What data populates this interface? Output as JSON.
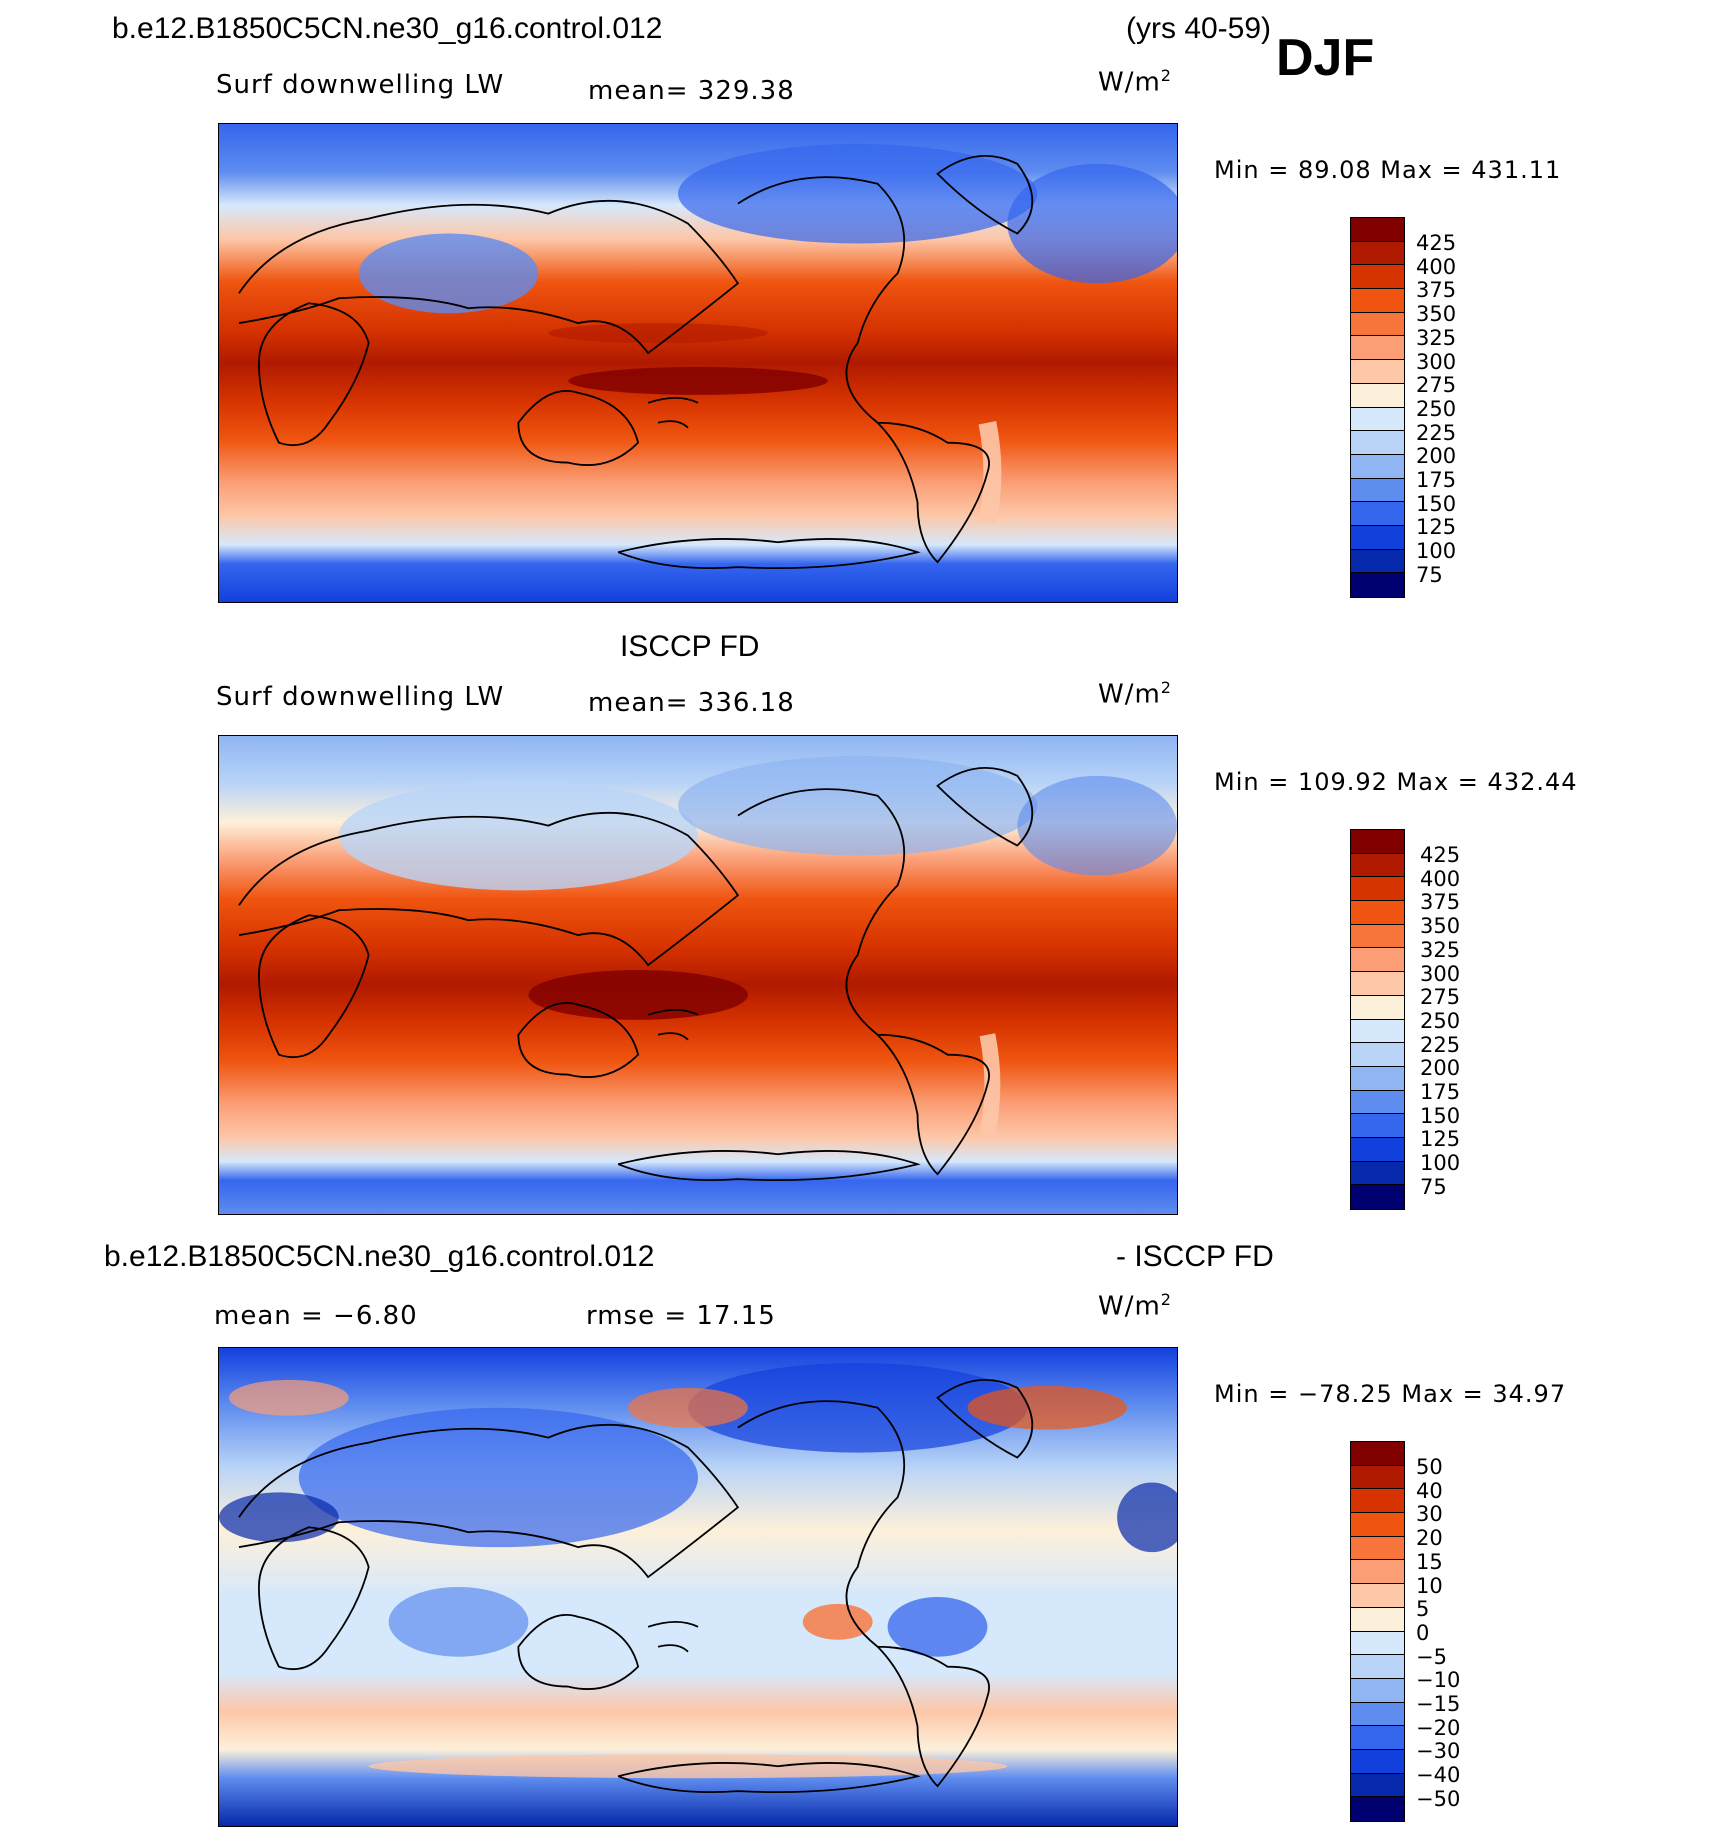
{
  "header": {
    "case_name": "b.e12.B1850C5CN.ne30_g16.control.012",
    "years": "(yrs 40-59)",
    "season": "DJF"
  },
  "panels": [
    {
      "id": "model",
      "title": "",
      "variable": "Surf downwelling LW",
      "stat": "mean=  329.38",
      "unit_base": "W/m",
      "unit_exp": "2",
      "minmax": "Min =   89.08  Max =  431.11",
      "colorbar": {
        "labels": [
          "425",
          "400",
          "375",
          "350",
          "325",
          "300",
          "275",
          "250",
          "225",
          "200",
          "175",
          "150",
          "125",
          "100",
          "75"
        ],
        "colors": [
          "#800000",
          "#b01a00",
          "#d63300",
          "#ef5510",
          "#f7743a",
          "#fb9e76",
          "#fdc7a8",
          "#fdf0da",
          "#d6e8fb",
          "#b9d4f7",
          "#8fb5f2",
          "#5e8cef",
          "#3566ee",
          "#1240dd",
          "#0628aa",
          "#000070"
        ]
      }
    },
    {
      "id": "obs",
      "title": "ISCCP FD",
      "variable": "Surf downwelling LW",
      "stat": "mean=  336.18",
      "unit_base": "W/m",
      "unit_exp": "2",
      "minmax": "Min =  109.92  Max =  432.44",
      "colorbar": {
        "labels": [
          "425",
          "400",
          "375",
          "350",
          "325",
          "300",
          "275",
          "250",
          "225",
          "200",
          "175",
          "150",
          "125",
          "100",
          "75"
        ],
        "colors": [
          "#800000",
          "#b01a00",
          "#d63300",
          "#ef5510",
          "#f7743a",
          "#fb9e76",
          "#fdc7a8",
          "#fdf0da",
          "#d6e8fb",
          "#b9d4f7",
          "#8fb5f2",
          "#5e8cef",
          "#3566ee",
          "#1240dd",
          "#0628aa",
          "#000070"
        ]
      }
    },
    {
      "id": "diff",
      "title_left": "b.e12.B1850C5CN.ne30_g16.control.012",
      "title_right": "- ISCCP FD",
      "stat_mean": "mean =   −6.80",
      "stat_rmse": "rmse =   17.15",
      "unit_base": "W/m",
      "unit_exp": "2",
      "minmax": "Min =  −78.25  Max =    34.97",
      "colorbar": {
        "labels": [
          "50",
          "40",
          "30",
          "20",
          "15",
          "10",
          "5",
          "0",
          "−5",
          "−10",
          "−15",
          "−20",
          "−30",
          "−40",
          "−50"
        ],
        "colors": [
          "#800000",
          "#b01a00",
          "#d63300",
          "#ef5510",
          "#f7743a",
          "#fb9e76",
          "#fdc7a8",
          "#fdf0da",
          "#d6e8fb",
          "#b9d4f7",
          "#8fb5f2",
          "#5e8cef",
          "#3566ee",
          "#1240dd",
          "#0628aa",
          "#000070"
        ]
      }
    }
  ]
}
